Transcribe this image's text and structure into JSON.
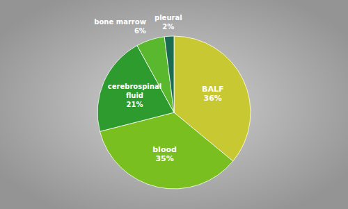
{
  "chart_data": {
    "type": "pie",
    "categories": [
      "BALF",
      "blood",
      "cerebrospinal\nfluid",
      "bone marrow",
      "pleural"
    ],
    "values": [
      36,
      35,
      21,
      6,
      2
    ],
    "value_labels": [
      "36%",
      "35%",
      "21%",
      "6%",
      "2%"
    ],
    "colors": [
      "#c8c832",
      "#7abf20",
      "#2e9b2e",
      "#5ab82e",
      "#1a6b50"
    ],
    "data_labels": true
  }
}
